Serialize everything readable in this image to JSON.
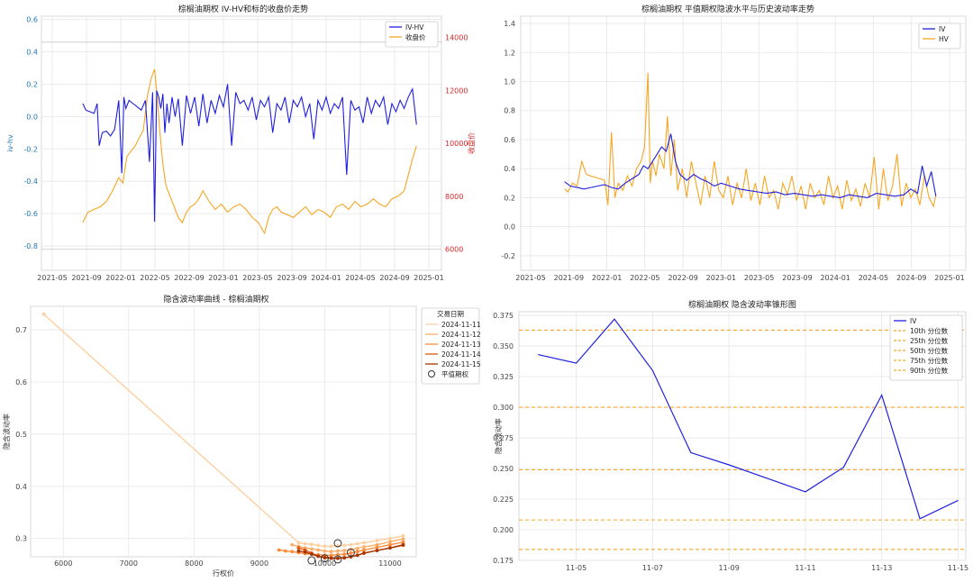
{
  "chart_data": [
    {
      "type": "line",
      "title": "棕榈油期权 IV-HV和标的收盘价走势",
      "ylabel": "iv-hv",
      "y2label": "收盘价",
      "ylim": [
        -0.95,
        0.62
      ],
      "y2lim": [
        5200,
        14800
      ],
      "x_ticks": [
        "2021-05",
        "2021-09",
        "2022-01",
        "2022-05",
        "2022-09",
        "2023-01",
        "2023-05",
        "2023-09",
        "2024-01",
        "2024-05",
        "2024-09",
        "2025-01"
      ],
      "yticks": [
        "0.6",
        "0.4",
        "0.2",
        "0.0",
        "-0.2",
        "-0.4",
        "-0.6",
        "-0.8"
      ],
      "y2ticks": [
        "14000",
        "12000",
        "10000",
        "8000",
        "6000"
      ],
      "hlines": [
        0.46,
        -0.82
      ],
      "legend_position": "top-right",
      "colors": {
        "iv_hv": "#1f1fe0",
        "close": "#f5a623"
      },
      "series": [
        {
          "name": "IV-HV",
          "axis": "left",
          "t": [
            2021.63,
            2021.66,
            2021.7,
            2021.74,
            2021.77,
            2021.79,
            2021.82,
            2021.86,
            2021.9,
            2021.94,
            2021.98,
            2022.01,
            2022.03,
            2022.05,
            2022.08,
            2022.12,
            2022.16,
            2022.2,
            2022.24,
            2022.28,
            2022.31,
            2022.33,
            2022.35,
            2022.37,
            2022.39,
            2022.41,
            2022.43,
            2022.45,
            2022.47,
            2022.5,
            2022.53,
            2022.56,
            2022.6,
            2022.64,
            2022.68,
            2022.72,
            2022.76,
            2022.8,
            2022.84,
            2022.88,
            2022.92,
            2022.96,
            2023.0,
            2023.04,
            2023.08,
            2023.12,
            2023.16,
            2023.2,
            2023.24,
            2023.28,
            2023.32,
            2023.36,
            2023.4,
            2023.44,
            2023.48,
            2023.52,
            2023.56,
            2023.6,
            2023.64,
            2023.68,
            2023.72,
            2023.76,
            2023.8,
            2023.84,
            2023.88,
            2023.92,
            2023.96,
            2024.0,
            2024.04,
            2024.08,
            2024.12,
            2024.16,
            2024.2,
            2024.24,
            2024.28,
            2024.32,
            2024.36,
            2024.4,
            2024.44,
            2024.48,
            2024.52,
            2024.56,
            2024.6,
            2024.64,
            2024.68,
            2024.72,
            2024.76,
            2024.8,
            2024.84,
            2024.88
          ],
          "values": [
            0.08,
            0.04,
            0.03,
            0.02,
            0.08,
            -0.18,
            -0.1,
            -0.09,
            -0.12,
            -0.08,
            0.1,
            -0.35,
            0.12,
            0.05,
            0.1,
            0.08,
            0.06,
            0.04,
            0.1,
            -0.28,
            0.15,
            -0.65,
            0.16,
            0.12,
            0.05,
            0.14,
            -0.1,
            0.08,
            -0.04,
            0.12,
            0.0,
            0.11,
            -0.18,
            0.13,
            0.02,
            0.12,
            -0.06,
            0.14,
            -0.04,
            0.1,
            0.02,
            0.13,
            0.06,
            0.2,
            -0.18,
            0.15,
            0.08,
            0.1,
            0.04,
            0.12,
            -0.02,
            0.1,
            0.06,
            0.12,
            -0.1,
            0.08,
            0.04,
            0.12,
            -0.04,
            0.1,
            0.06,
            0.12,
            0.0,
            0.08,
            -0.14,
            0.1,
            0.04,
            0.12,
            0.02,
            0.08,
            0.05,
            0.12,
            -0.36,
            0.1,
            0.04,
            0.06,
            -0.04,
            0.12,
            0.02,
            0.1,
            0.06,
            0.12,
            -0.05,
            0.08,
            0.03,
            0.1,
            0.05,
            0.12,
            0.17,
            -0.05
          ]
        },
        {
          "name": "收盘价",
          "axis": "right",
          "t": [
            2021.63,
            2021.68,
            2021.74,
            2021.8,
            2021.86,
            2021.92,
            2021.98,
            2022.02,
            2022.06,
            2022.1,
            2022.14,
            2022.18,
            2022.22,
            2022.26,
            2022.3,
            2022.33,
            2022.36,
            2022.38,
            2022.41,
            2022.44,
            2022.48,
            2022.52,
            2022.56,
            2022.6,
            2022.64,
            2022.68,
            2022.72,
            2022.76,
            2022.8,
            2022.86,
            2022.92,
            2022.98,
            2023.04,
            2023.1,
            2023.16,
            2023.22,
            2023.28,
            2023.34,
            2023.4,
            2023.44,
            2023.48,
            2023.52,
            2023.56,
            2023.62,
            2023.68,
            2023.74,
            2023.8,
            2023.86,
            2023.92,
            2023.98,
            2024.04,
            2024.1,
            2024.16,
            2024.22,
            2024.28,
            2024.34,
            2024.4,
            2024.46,
            2024.52,
            2024.58,
            2024.64,
            2024.7,
            2024.76,
            2024.8,
            2024.84,
            2024.88
          ],
          "values": [
            7000,
            7400,
            7500,
            7600,
            7800,
            8200,
            8700,
            8500,
            9500,
            9700,
            9900,
            10200,
            10500,
            11800,
            12500,
            12800,
            11500,
            10500,
            9200,
            8400,
            8000,
            7600,
            7200,
            7000,
            7400,
            7600,
            7700,
            7900,
            8200,
            7800,
            7500,
            7700,
            7400,
            7600,
            7700,
            7500,
            7200,
            7000,
            6600,
            7200,
            7500,
            7600,
            7400,
            7300,
            7200,
            7400,
            7600,
            7300,
            7500,
            7400,
            7200,
            7600,
            7700,
            7500,
            7800,
            7600,
            7700,
            7900,
            7700,
            7600,
            7900,
            8000,
            8200,
            8800,
            9400,
            9900
          ]
        }
      ]
    },
    {
      "type": "line",
      "title": "棕榈油期权 平值期权隐波水平与历史波动率走势",
      "xlabel": "",
      "ylabel": "",
      "ylim": [
        -0.3,
        1.45
      ],
      "x_ticks": [
        "2021-05",
        "2021-09",
        "2022-01",
        "2022-05",
        "2022-09",
        "2023-01",
        "2023-05",
        "2023-09",
        "2024-01",
        "2024-05",
        "2024-09",
        "2025-01"
      ],
      "yticks": [
        "1.4",
        "1.2",
        "1.0",
        "0.8",
        "0.6",
        "0.4",
        "0.2",
        "0.0",
        "-0.2"
      ],
      "legend_position": "top-right",
      "colors": {
        "iv": "#1f1fe0",
        "hv": "#f5a623"
      },
      "series": [
        {
          "name": "IV",
          "t": [
            2021.63,
            2021.68,
            2021.74,
            2021.8,
            2021.86,
            2021.92,
            2021.98,
            2022.04,
            2022.1,
            2022.16,
            2022.22,
            2022.28,
            2022.32,
            2022.36,
            2022.4,
            2022.44,
            2022.48,
            2022.52,
            2022.56,
            2022.6,
            2022.64,
            2022.7,
            2022.76,
            2022.82,
            2022.88,
            2022.94,
            2023.0,
            2023.08,
            2023.16,
            2023.24,
            2023.32,
            2023.4,
            2023.48,
            2023.56,
            2023.64,
            2023.72,
            2023.8,
            2023.88,
            2023.96,
            2024.04,
            2024.12,
            2024.2,
            2024.28,
            2024.36,
            2024.44,
            2024.52,
            2024.6,
            2024.66,
            2024.72,
            2024.76,
            2024.8,
            2024.84,
            2024.88
          ],
          "values": [
            0.31,
            0.28,
            0.27,
            0.26,
            0.27,
            0.28,
            0.29,
            0.27,
            0.26,
            0.3,
            0.33,
            0.36,
            0.42,
            0.4,
            0.45,
            0.5,
            0.55,
            0.52,
            0.64,
            0.45,
            0.36,
            0.32,
            0.36,
            0.33,
            0.31,
            0.28,
            0.3,
            0.28,
            0.26,
            0.25,
            0.24,
            0.23,
            0.24,
            0.22,
            0.23,
            0.22,
            0.21,
            0.22,
            0.21,
            0.2,
            0.22,
            0.21,
            0.2,
            0.23,
            0.22,
            0.21,
            0.22,
            0.26,
            0.23,
            0.42,
            0.28,
            0.38,
            0.21
          ]
        },
        {
          "name": "HV",
          "t": [
            2021.63,
            2021.66,
            2021.7,
            2021.74,
            2021.78,
            2021.82,
            2021.86,
            2021.9,
            2021.94,
            2021.98,
            2022.01,
            2022.04,
            2022.07,
            2022.1,
            2022.14,
            2022.18,
            2022.22,
            2022.26,
            2022.3,
            2022.33,
            2022.36,
            2022.38,
            2022.4,
            2022.43,
            2022.46,
            2022.5,
            2022.53,
            2022.56,
            2022.59,
            2022.62,
            2022.66,
            2022.7,
            2022.74,
            2022.78,
            2022.82,
            2022.86,
            2022.9,
            2022.94,
            2022.98,
            2023.02,
            2023.06,
            2023.1,
            2023.14,
            2023.18,
            2023.22,
            2023.26,
            2023.3,
            2023.34,
            2023.38,
            2023.42,
            2023.46,
            2023.5,
            2023.54,
            2023.58,
            2023.62,
            2023.66,
            2023.7,
            2023.74,
            2023.78,
            2023.82,
            2023.86,
            2023.9,
            2023.94,
            2023.98,
            2024.02,
            2024.06,
            2024.1,
            2024.14,
            2024.18,
            2024.22,
            2024.26,
            2024.3,
            2024.34,
            2024.38,
            2024.42,
            2024.46,
            2024.5,
            2024.54,
            2024.58,
            2024.62,
            2024.66,
            2024.7,
            2024.74,
            2024.78,
            2024.82,
            2024.86,
            2024.88
          ],
          "values": [
            0.26,
            0.24,
            0.3,
            0.28,
            0.45,
            0.36,
            0.35,
            0.34,
            0.33,
            0.32,
            0.15,
            0.65,
            0.2,
            0.3,
            0.25,
            0.35,
            0.28,
            0.4,
            0.45,
            0.55,
            1.06,
            0.3,
            0.45,
            0.35,
            0.5,
            0.4,
            0.76,
            0.35,
            0.6,
            0.25,
            0.4,
            0.2,
            0.45,
            0.3,
            0.15,
            0.35,
            0.2,
            0.45,
            0.25,
            0.2,
            0.35,
            0.15,
            0.3,
            0.2,
            0.4,
            0.18,
            0.3,
            0.15,
            0.35,
            0.2,
            0.25,
            0.12,
            0.3,
            0.22,
            0.35,
            0.18,
            0.28,
            0.12,
            0.3,
            0.2,
            0.25,
            0.15,
            0.35,
            0.2,
            0.28,
            0.12,
            0.32,
            0.18,
            0.26,
            0.14,
            0.3,
            0.2,
            0.48,
            0.12,
            0.4,
            0.18,
            0.28,
            0.5,
            0.14,
            0.3,
            0.2,
            0.26,
            0.15,
            0.35,
            0.2,
            0.14,
            0.22
          ]
        }
      ]
    },
    {
      "type": "line",
      "title": "隐含波动率曲线 - 棕榈油期权",
      "xlabel": "行权价",
      "ylabel": "隐含波动率",
      "xlim": [
        5500,
        11400
      ],
      "ylim": [
        0.265,
        0.745
      ],
      "xticks": [
        6000,
        7000,
        8000,
        9000,
        10000,
        11000
      ],
      "yticks": [
        0.3,
        0.4,
        0.5,
        0.6,
        0.7
      ],
      "legend_title": "交易日期",
      "legend_position": "top-right",
      "atm_label": "平值期权",
      "series": [
        {
          "name": "2024-11-11",
          "color": "#fdd0a2",
          "x": [
            5700,
            9600,
            9700,
            9800,
            9900,
            10000,
            10100,
            10200,
            10300,
            10400,
            10500,
            10600,
            10800,
            11000,
            11200
          ],
          "values": [
            0.73,
            0.292,
            0.29,
            0.289,
            0.287,
            0.285,
            0.285,
            0.286,
            0.287,
            0.288,
            0.29,
            0.292,
            0.296,
            0.3,
            0.305
          ]
        },
        {
          "name": "2024-11-12",
          "color": "#fdae6b",
          "x": [
            9500,
            9600,
            9700,
            9800,
            9900,
            10000,
            10100,
            10200,
            10300,
            10400,
            10500,
            10600,
            10800,
            11000,
            11200
          ],
          "values": [
            0.288,
            0.285,
            0.282,
            0.28,
            0.278,
            0.276,
            0.275,
            0.276,
            0.277,
            0.279,
            0.281,
            0.284,
            0.288,
            0.294,
            0.299
          ]
        },
        {
          "name": "2024-11-13",
          "color": "#fd8d3c",
          "x": [
            9300,
            9400,
            9500,
            9600,
            9700,
            9800,
            9900,
            10000,
            10100,
            10200,
            10300,
            10400,
            10500,
            10600,
            10800,
            11000,
            11200
          ],
          "values": [
            0.278,
            0.276,
            0.275,
            0.273,
            0.271,
            0.27,
            0.269,
            0.268,
            0.268,
            0.269,
            0.27,
            0.272,
            0.275,
            0.278,
            0.283,
            0.288,
            0.293
          ]
        },
        {
          "name": "2024-11-14",
          "color": "#e6550d",
          "x": [
            9600,
            9700,
            9800,
            9900,
            10000,
            10100,
            10200,
            10300,
            10400,
            10500,
            10600,
            10800,
            11000,
            11200
          ],
          "values": [
            0.282,
            0.278,
            0.272,
            0.266,
            0.264,
            0.263,
            0.262,
            0.263,
            0.265,
            0.268,
            0.272,
            0.277,
            0.282,
            0.287
          ]
        },
        {
          "name": "2024-11-15",
          "color": "#a63603",
          "x": [
            9600,
            9700,
            9800,
            9900,
            10000,
            10100,
            10200,
            10300,
            10400,
            10500,
            10600,
            10800,
            11000,
            11200
          ],
          "values": [
            0.276,
            0.274,
            0.27,
            0.266,
            0.263,
            0.262,
            0.262,
            0.263,
            0.265,
            0.268,
            0.272,
            0.277,
            0.282,
            0.288
          ]
        }
      ],
      "atm_points": [
        {
          "x": 10200,
          "value": 0.291
        },
        {
          "x": 10400,
          "value": 0.273
        },
        {
          "x": 9800,
          "value": 0.258
        },
        {
          "x": 10000,
          "value": 0.262
        },
        {
          "x": 10200,
          "value": 0.26
        }
      ]
    },
    {
      "type": "line",
      "title": "棕榈油期权 隐含波动率锥形图",
      "ylabel": "隐含波动率",
      "ylim": [
        0.175,
        0.378
      ],
      "yticks": [
        "0.375",
        "0.350",
        "0.325",
        "0.300",
        "0.275",
        "0.250",
        "0.225",
        "0.200",
        "0.175"
      ],
      "x_ticks": [
        "11-05",
        "11-07",
        "11-09",
        "11-11",
        "11-13",
        "11-15"
      ],
      "x_tick_pos": [
        5,
        7,
        9,
        11,
        13,
        15
      ],
      "xlim": [
        3.5,
        15.2
      ],
      "legend_position": "top-right",
      "series": [
        {
          "name": "IV",
          "color": "#1f1fe0",
          "x": [
            4,
            5,
            6,
            7,
            8,
            9,
            10,
            11,
            12,
            13,
            14,
            15
          ],
          "values": [
            0.343,
            0.336,
            0.372,
            0.33,
            0.263,
            0.253,
            0.242,
            0.231,
            0.251,
            0.31,
            0.209,
            0.224
          ]
        }
      ],
      "percentiles": [
        {
          "name": "10th 分位数",
          "value": 0.184
        },
        {
          "name": "25th 分位数",
          "value": 0.208
        },
        {
          "name": "50th 分位数",
          "value": 0.249
        },
        {
          "name": "75th 分位数",
          "value": 0.3
        },
        {
          "name": "90th 分位数",
          "value": 0.363
        }
      ],
      "percentile_color": "#f5a623"
    }
  ]
}
